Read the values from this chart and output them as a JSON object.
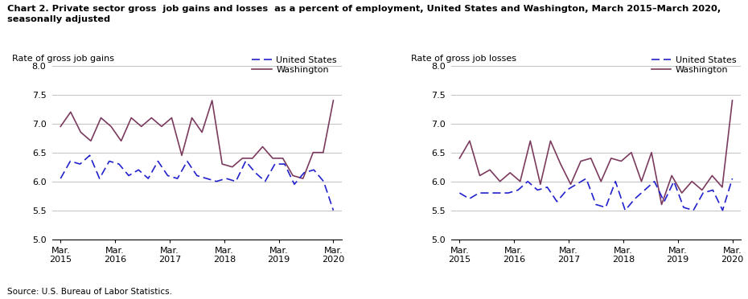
{
  "title_line1": "Chart 2. Private sector gross  job gains and losses  as a percent of employment, United States and Washington, March 2015–March 2020,",
  "title_line2": "seasonally adjusted",
  "source": "Source: U.S. Bureau of Labor Statistics.",
  "us_color": "#2222CC",
  "wa_color": "#7B3B5E",
  "background_color": "#FFFFFF",
  "grid_color": "#AAAAAA",
  "ylim": [
    5.0,
    8.0
  ],
  "yticks": [
    5.0,
    5.5,
    6.0,
    6.5,
    7.0,
    7.5,
    8.0
  ],
  "xtick_labels": [
    "Mar.\n2015",
    "Mar.\n2016",
    "Mar.\n2017",
    "Mar.\n2018",
    "Mar.\n2019",
    "Mar.\n2020"
  ],
  "left_ylabel": "Rate of gross job gains",
  "right_ylabel": "Rate of gross job losses",
  "legend_us": "United States",
  "legend_wa": "Washington",
  "gains_us": [
    6.05,
    6.35,
    6.3,
    6.45,
    6.05,
    6.35,
    6.3,
    6.1,
    6.2,
    6.05,
    6.35,
    6.1,
    6.05,
    6.35,
    6.1,
    6.05,
    6.0,
    6.05,
    6.0,
    6.35,
    6.15,
    6.0,
    6.3,
    6.3,
    5.95,
    6.15,
    6.2,
    6.0,
    5.5
  ],
  "gains_wa": [
    6.95,
    7.2,
    6.85,
    6.7,
    7.1,
    6.95,
    6.7,
    7.1,
    6.95,
    7.1,
    6.95,
    7.1,
    6.45,
    7.1,
    6.85,
    7.4,
    6.3,
    6.25,
    6.4,
    6.4,
    6.6,
    6.4,
    6.4,
    6.1,
    6.05,
    6.5,
    6.5,
    7.4
  ],
  "losses_us": [
    5.8,
    5.7,
    5.8,
    5.8,
    5.8,
    5.8,
    5.85,
    6.0,
    5.85,
    5.9,
    5.65,
    5.85,
    5.95,
    6.05,
    5.6,
    5.55,
    6.0,
    5.5,
    5.7,
    5.85,
    6.0,
    5.65,
    6.0,
    5.55,
    5.5,
    5.8,
    5.85,
    5.5,
    6.05
  ],
  "losses_wa": [
    6.4,
    6.7,
    6.1,
    6.2,
    6.0,
    6.15,
    6.0,
    6.7,
    5.95,
    6.7,
    6.3,
    5.95,
    6.35,
    6.4,
    6.0,
    6.4,
    6.35,
    6.5,
    6.0,
    6.5,
    5.6,
    6.1,
    5.8,
    6.0,
    5.85,
    6.1,
    5.9,
    7.4
  ]
}
